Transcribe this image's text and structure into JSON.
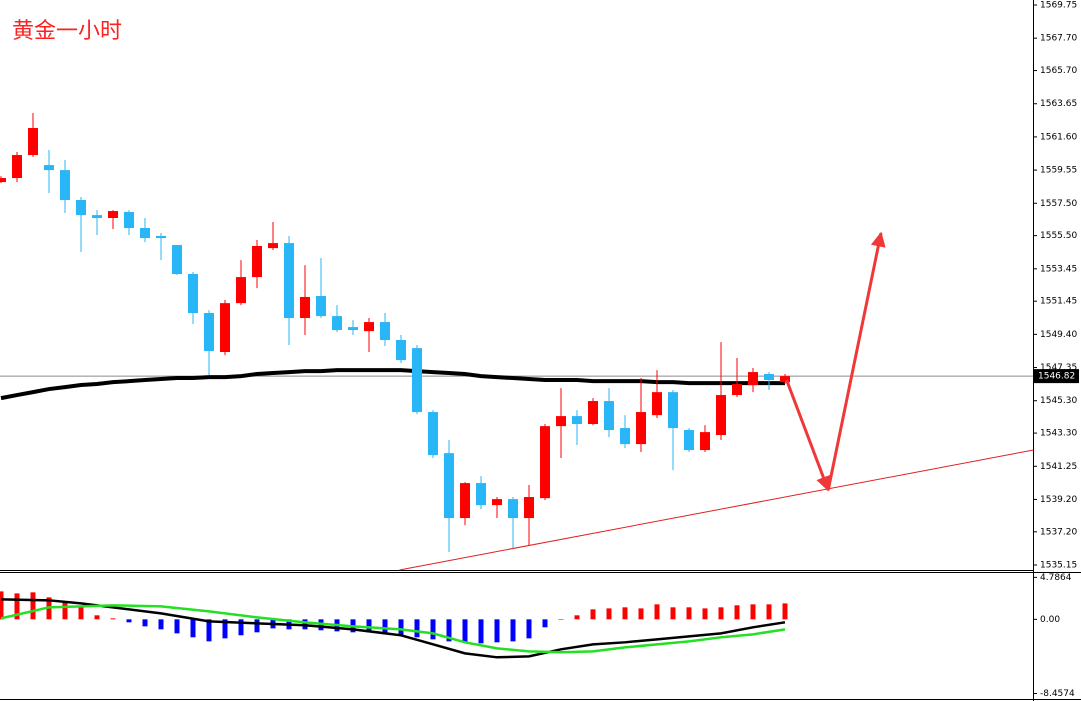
{
  "chart_data": [
    {
      "type": "candlestick",
      "title": "黄金一小时",
      "up_color": "#ff0000",
      "down_color": "#29b6f6",
      "open": [
        1558.81,
        1559.06,
        1560.48,
        1559.86,
        1559.55,
        1557.7,
        1556.77,
        1556.59,
        1556.96,
        1555.97,
        1555.48,
        1554.92,
        1553.13,
        1550.72,
        1548.31,
        1551.33,
        1552.94,
        1554.73,
        1555.04,
        1550.41,
        1551.77,
        1550.53,
        1549.85,
        1549.6,
        1550.16,
        1549.05,
        1548.55,
        1544.6,
        1542.06,
        1538.05,
        1540.21,
        1538.85,
        1539.22,
        1538.05,
        1539.28,
        1543.73,
        1544.35,
        1543.86,
        1545.28,
        1543.61,
        1542.62,
        1544.41,
        1545.83,
        1543.49,
        1542.25,
        1543.18,
        1545.65,
        1546.27,
        1546.95,
        1546.45
      ],
      "high": [
        1559.18,
        1560.67,
        1563.08,
        1560.79,
        1560.17,
        1557.89,
        1557.08,
        1557.08,
        1557.08,
        1556.59,
        1555.66,
        1554.92,
        1553.25,
        1550.9,
        1551.52,
        1553.99,
        1555.23,
        1556.34,
        1555.48,
        1553.68,
        1554.12,
        1551.21,
        1550.28,
        1550.41,
        1550.72,
        1549.36,
        1548.74,
        1544.72,
        1542.87,
        1540.27,
        1540.64,
        1539.35,
        1539.35,
        1540.09,
        1543.86,
        1546.08,
        1544.72,
        1545.46,
        1546.08,
        1544.41,
        1546.7,
        1547.19,
        1545.96,
        1543.61,
        1543.79,
        1548.92,
        1547.94,
        1547.32,
        1547.07,
        1546.95
      ],
      "low": [
        1558.75,
        1558.81,
        1560.36,
        1558.13,
        1556.9,
        1554.49,
        1555.54,
        1555.91,
        1555.54,
        1555.1,
        1553.99,
        1553.06,
        1550.04,
        1546.88,
        1548.12,
        1551.21,
        1552.26,
        1554.61,
        1548.74,
        1549.36,
        1550.41,
        1549.54,
        1549.36,
        1548.31,
        1548.68,
        1547.63,
        1544.47,
        1541.76,
        1535.95,
        1537.61,
        1538.6,
        1538.05,
        1536.19,
        1536.38,
        1539.16,
        1541.76,
        1542.56,
        1543.79,
        1543.05,
        1542.37,
        1542.13,
        1544.23,
        1541.01,
        1542.13,
        1542.13,
        1542.87,
        1545.53,
        1545.83,
        1545.96,
        1546.33
      ],
      "close": [
        1559.06,
        1560.48,
        1562.15,
        1559.55,
        1557.7,
        1556.77,
        1556.59,
        1557.02,
        1555.97,
        1555.35,
        1555.35,
        1553.13,
        1550.72,
        1548.37,
        1551.33,
        1552.94,
        1554.86,
        1555.04,
        1550.41,
        1551.71,
        1550.53,
        1549.67,
        1549.67,
        1550.16,
        1549.05,
        1547.81,
        1544.6,
        1541.94,
        1538.05,
        1540.21,
        1538.85,
        1539.22,
        1538.05,
        1539.35,
        1543.73,
        1544.35,
        1543.86,
        1545.28,
        1543.49,
        1542.62,
        1544.6,
        1545.83,
        1543.61,
        1542.25,
        1543.36,
        1545.65,
        1546.33,
        1547.07,
        1546.58,
        1546.82
      ],
      "ma": {
        "color": "#000000",
        "values": [
          1545.46,
          1545.65,
          1545.83,
          1546.02,
          1546.14,
          1546.27,
          1546.33,
          1546.45,
          1546.51,
          1546.58,
          1546.64,
          1546.7,
          1546.7,
          1546.76,
          1546.76,
          1546.82,
          1546.95,
          1547.01,
          1547.07,
          1547.13,
          1547.13,
          1547.19,
          1547.19,
          1547.19,
          1547.19,
          1547.19,
          1547.13,
          1547.07,
          1547.01,
          1546.95,
          1546.82,
          1546.76,
          1546.7,
          1546.64,
          1546.58,
          1546.58,
          1546.58,
          1546.51,
          1546.51,
          1546.51,
          1546.51,
          1546.45,
          1546.45,
          1546.39,
          1546.39,
          1546.39,
          1546.39,
          1546.39,
          1546.39,
          1546.39
        ]
      },
      "price_line": 1546.82,
      "trendline": {
        "color": "#e02020",
        "x": [
          24.9,
          64.5
        ],
        "values": [
          1534.84,
          1542.25
        ]
      },
      "projection": {
        "color": "#f03838",
        "x": [
          49.1,
          51.7,
          55
        ],
        "values": [
          1546.58,
          1539.78,
          1555.66
        ]
      },
      "ylim": [
        1534.84,
        1570.06
      ],
      "yticks": [
        1569.75,
        {
          "value": 1567.7,
          "label": "1567.70"
        },
        {
          "value": 1565.7,
          "label": "1565.70"
        },
        1563.65,
        {
          "value": 1561.6,
          "label": "1561.60"
        },
        1559.55,
        {
          "value": 1557.5,
          "label": "1557.50"
        },
        {
          "value": 1555.5,
          "label": "1555.50"
        },
        1553.45,
        1551.45,
        {
          "value": 1549.4,
          "label": "1549.40"
        },
        1547.35,
        {
          "value": 1545.3,
          "label": "1545.30"
        },
        {
          "value": 1543.3,
          "label": "1543.30"
        },
        1541.25,
        {
          "value": 1539.2,
          "label": "1539.20"
        },
        {
          "value": 1537.2,
          "label": "1537.20"
        },
        1535.15
      ]
    },
    {
      "type": "macd",
      "up_color": "#ff0000",
      "down_color": "#0000ff",
      "histogram": [
        3.19,
        2.96,
        3.08,
        2.51,
        2.05,
        1.37,
        0.46,
        0.11,
        -0.34,
        -0.8,
        -1.14,
        -1.6,
        -2.05,
        -2.51,
        -2.17,
        -1.82,
        -1.48,
        -1.03,
        -1.14,
        -1.14,
        -1.25,
        -1.37,
        -1.48,
        -1.48,
        -1.71,
        -1.82,
        -2.05,
        -2.28,
        -2.51,
        -2.62,
        -2.74,
        -2.62,
        -2.51,
        -2.17,
        -0.91,
        -0.05,
        0.46,
        1.14,
        1.25,
        1.37,
        1.25,
        1.71,
        1.37,
        1.37,
        1.25,
        1.37,
        1.6,
        1.71,
        1.71,
        1.82
      ],
      "series": [
        {
          "color": "#000000",
          "x": [
            0,
            3,
            5,
            7,
            10,
            13,
            16,
            19,
            22,
            25,
            27,
            29,
            31,
            33,
            35,
            37,
            39,
            41,
            43,
            45,
            47,
            49
          ],
          "values": [
            2.28,
            2.17,
            1.82,
            1.37,
            0.68,
            -0.23,
            -0.46,
            -0.68,
            -1.14,
            -1.82,
            -2.85,
            -3.88,
            -4.33,
            -4.22,
            -3.42,
            -2.85,
            -2.62,
            -2.28,
            -1.94,
            -1.6,
            -0.91,
            -0.34
          ]
        },
        {
          "color": "#22e022",
          "x": [
            0,
            3,
            5,
            7,
            10,
            13,
            16,
            19,
            22,
            25,
            27,
            29,
            31,
            33,
            35,
            37,
            39,
            41,
            43,
            45,
            47,
            49
          ],
          "values": [
            0.11,
            1.37,
            1.48,
            1.6,
            1.48,
            0.91,
            0.23,
            -0.34,
            -0.8,
            -1.14,
            -1.6,
            -2.62,
            -3.31,
            -3.65,
            -3.76,
            -3.65,
            -3.2,
            -2.85,
            -2.51,
            -2.05,
            -1.71,
            -1.14
          ]
        }
      ],
      "ylim": [
        -9.2,
        5.4
      ],
      "yticks": [
        4.7864,
        {
          "value": 0,
          "label": "0.00"
        },
        -8.4574
      ]
    }
  ]
}
